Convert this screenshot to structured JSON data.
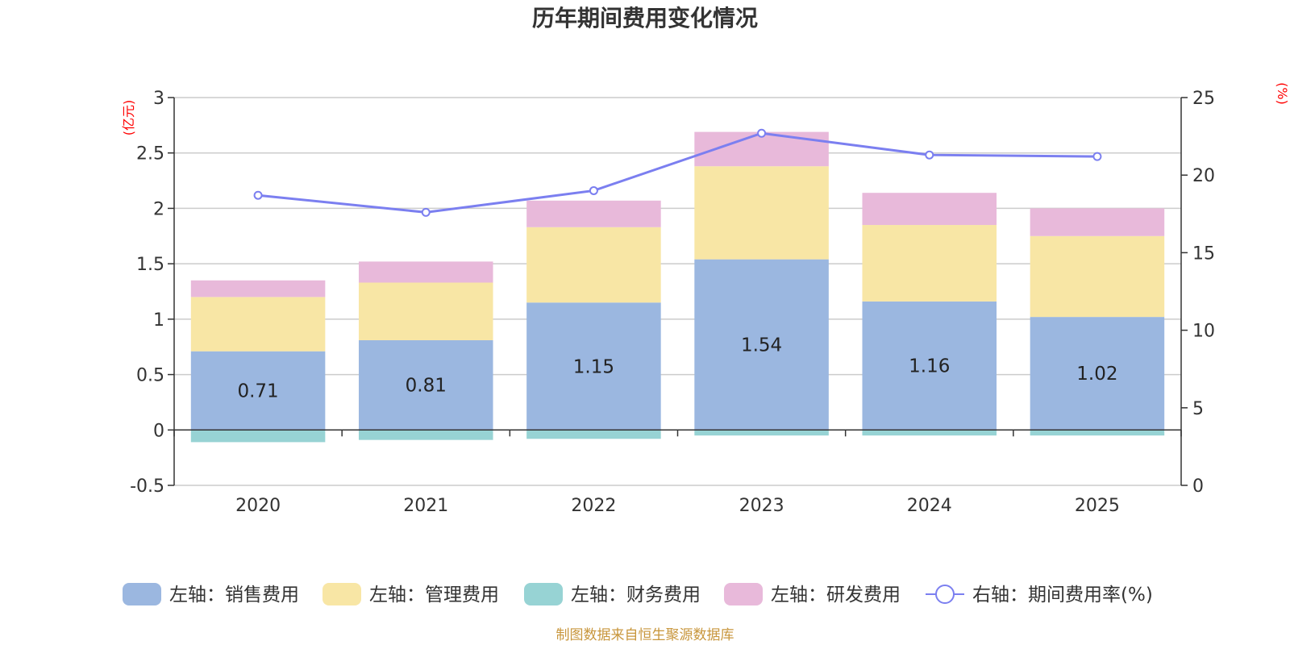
{
  "chart_data": {
    "type": "bar",
    "stacked": true,
    "title": "历年期间费用变化情况",
    "categories": [
      "2020",
      "2021",
      "2022",
      "2023",
      "2024",
      "2025"
    ],
    "series": [
      {
        "name": "左轴：销售费用",
        "axis": "left",
        "type": "bar",
        "color": "#9bb7e0",
        "values": [
          0.71,
          0.81,
          1.15,
          1.54,
          1.16,
          1.02
        ],
        "labels": [
          "0.71",
          "0.81",
          "1.15",
          "1.54",
          "1.16",
          "1.02"
        ]
      },
      {
        "name": "左轴：管理费用",
        "axis": "left",
        "type": "bar",
        "color": "#f8e6a5",
        "values": [
          0.49,
          0.52,
          0.68,
          0.84,
          0.69,
          0.73
        ]
      },
      {
        "name": "左轴：财务费用",
        "axis": "left",
        "type": "bar",
        "color": "#97d3d4",
        "values": [
          -0.11,
          -0.09,
          -0.08,
          -0.05,
          -0.05,
          -0.05
        ]
      },
      {
        "name": "左轴：研发费用",
        "axis": "left",
        "type": "bar",
        "color": "#e8b9da",
        "values": [
          0.15,
          0.19,
          0.24,
          0.31,
          0.29,
          0.25
        ]
      },
      {
        "name": "右轴：期间费用率(%)",
        "axis": "right",
        "type": "line",
        "color": "#7b7ff0",
        "values": [
          18.7,
          17.6,
          19.0,
          22.7,
          21.3,
          21.2
        ]
      }
    ],
    "y_left": {
      "label": "(亿元)",
      "min": -0.5,
      "max": 3,
      "ticks": [
        "-0.5",
        "0",
        "0.5",
        "1",
        "1.5",
        "2",
        "2.5",
        "3"
      ]
    },
    "y_right": {
      "label": "(%)",
      "min": 0,
      "max": 25,
      "ticks": [
        "0",
        "5",
        "10",
        "15",
        "20",
        "25"
      ]
    },
    "grid": true,
    "legend_position": "bottom",
    "source": "制图数据来自恒生聚源数据库"
  }
}
